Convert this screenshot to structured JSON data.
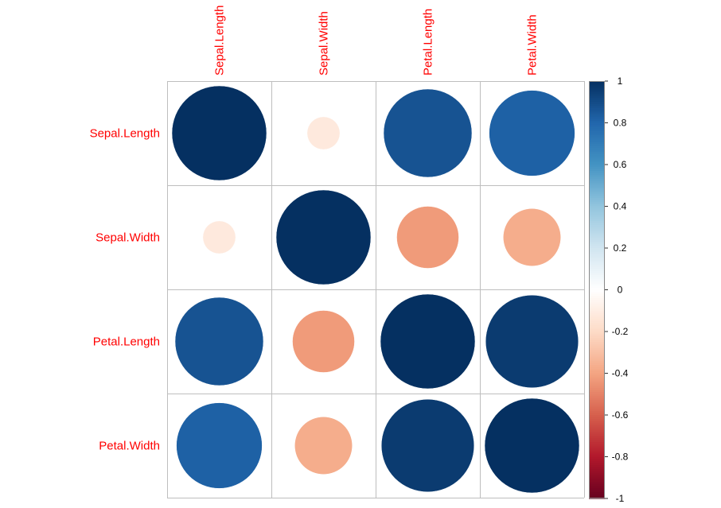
{
  "chart_data": {
    "type": "heatmap",
    "subtype": "correlation-matrix-circles",
    "variables": [
      "Sepal.Length",
      "Sepal.Width",
      "Petal.Length",
      "Petal.Width"
    ],
    "matrix": [
      [
        1.0,
        -0.12,
        0.87,
        0.82
      ],
      [
        -0.12,
        1.0,
        -0.43,
        -0.37
      ],
      [
        0.87,
        -0.43,
        1.0,
        0.96
      ],
      [
        0.82,
        -0.37,
        0.96,
        1.0
      ]
    ],
    "colorbar": {
      "range": [
        -1,
        1
      ],
      "ticks": [
        {
          "value": 1,
          "label": "1"
        },
        {
          "value": 0.8,
          "label": "0.8"
        },
        {
          "value": 0.6,
          "label": "0.6"
        },
        {
          "value": 0.4,
          "label": "0.4"
        },
        {
          "value": 0.2,
          "label": "0.2"
        },
        {
          "value": 0,
          "label": "0"
        },
        {
          "value": -0.2,
          "label": "-0.2"
        },
        {
          "value": -0.4,
          "label": "-0.4"
        },
        {
          "value": -0.6,
          "label": "-0.6"
        },
        {
          "value": -0.8,
          "label": "-0.8"
        },
        {
          "value": -1,
          "label": "-1"
        }
      ],
      "palette": [
        "#67001F",
        "#B2182B",
        "#D6604D",
        "#F4A582",
        "#FDDBC7",
        "#FFFFFF",
        "#D1E5F0",
        "#92C5DE",
        "#4393C3",
        "#2166AC",
        "#053061"
      ]
    },
    "label_color": "#FF0000",
    "grid_color": "#BEBEBE"
  }
}
